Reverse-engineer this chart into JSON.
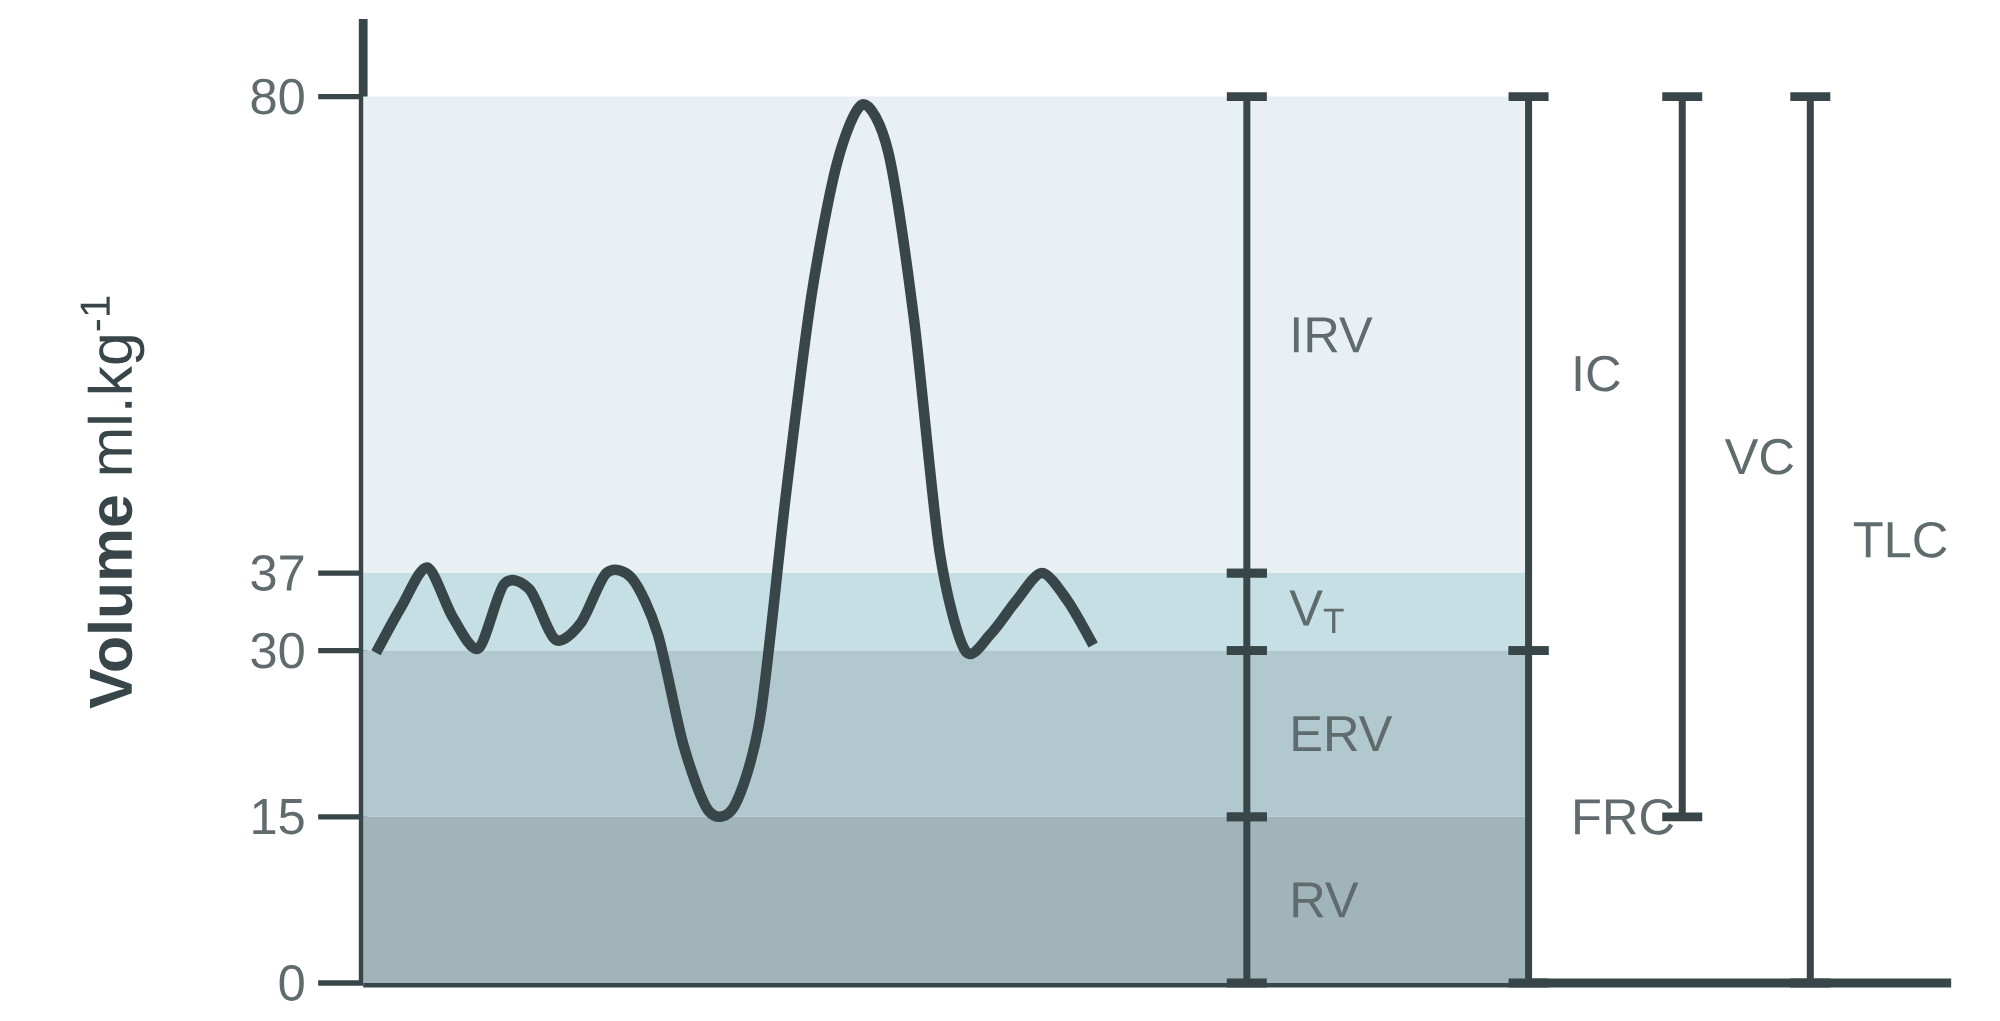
{
  "chart_data": {
    "type": "line",
    "ylabel": "**Volume** ml.kg$^{-1}$",
    "tick_labels": "y",
    "stacked": true,
    "categories": [
      null,
      null,
      null,
      null,
      null,
      null,
      null,
      null,
      null,
      null,
      null,
      null,
      null,
      null,
      null,
      null,
      null,
      null,
      null,
      null,
      null,
      null,
      null,
      null,
      null,
      null,
      null,
      null,
      null,
      null,
      null,
      null,
      null,
      null,
      null,
      null,
      null,
      null,
      null,
      null,
      null,
      null,
      null,
      null,
      null,
      null,
      null,
      null,
      null,
      null,
      null,
      null,
      null,
      null,
      null,
      null,
      null,
      null,
      null,
      null,
      null,
      null
    ],
    "series": [
      {
        "color": "#384649",
        "values": [
          29.8,
          34,
          37.5,
          33,
          30.2,
          36,
          35.5,
          31,
          32.5,
          37,
          36.5,
          31.5,
          21.5,
          15.5,
          16,
          24,
          44,
          62,
          74,
          79.3,
          75,
          60,
          39,
          30,
          31.5,
          34.5,
          37,
          34.5,
          30.5,
          null,
          null,
          null,
          null,
          null,
          null,
          null,
          null,
          null,
          null,
          null,
          null,
          null,
          null,
          null,
          null,
          null,
          null,
          null,
          null,
          null,
          null,
          null,
          null,
          null,
          null,
          null,
          null,
          null,
          null,
          null,
          null,
          null
        ]
      },
      {
        "type": "bar",
        "name": "RV",
        "color": "#384649",
        "values": [
          null,
          null,
          null,
          null,
          null,
          null,
          null,
          null,
          null,
          null,
          null,
          null,
          null,
          null,
          null,
          null,
          null,
          null,
          null,
          null,
          null,
          null,
          null,
          null,
          null,
          null,
          null,
          null,
          null,
          null,
          null,
          null,
          null,
          null,
          15,
          null,
          null,
          null,
          null,
          null,
          null,
          null,
          null,
          null,
          null,
          null,
          null,
          null,
          null,
          null,
          null,
          null,
          null,
          null,
          null,
          null,
          null,
          null,
          null,
          null,
          null,
          null
        ]
      },
      {
        "type": "bar",
        "name": "ERV",
        "color": "#384649",
        "values": [
          null,
          null,
          null,
          null,
          null,
          null,
          null,
          null,
          null,
          null,
          null,
          null,
          null,
          null,
          null,
          null,
          null,
          null,
          null,
          null,
          null,
          null,
          null,
          null,
          null,
          null,
          null,
          null,
          null,
          null,
          null,
          null,
          null,
          null,
          15,
          null,
          null,
          null,
          null,
          null,
          null,
          null,
          null,
          null,
          null,
          null,
          null,
          null,
          null,
          null,
          null,
          null,
          null,
          null,
          null,
          null,
          null,
          null,
          null,
          null,
          null,
          null
        ]
      },
      {
        "type": "bar",
        "name": "V$_{T}$",
        "color": "#384649",
        "values": [
          null,
          null,
          null,
          null,
          null,
          null,
          null,
          null,
          null,
          null,
          null,
          null,
          null,
          null,
          null,
          null,
          null,
          null,
          null,
          null,
          null,
          null,
          null,
          null,
          null,
          null,
          null,
          null,
          null,
          null,
          null,
          null,
          null,
          null,
          7,
          null,
          null,
          null,
          null,
          null,
          null,
          null,
          null,
          null,
          null,
          null,
          null,
          null,
          null,
          null,
          null,
          null,
          null,
          null,
          null,
          null,
          null,
          null,
          null,
          null,
          null,
          null
        ]
      },
      {
        "type": "bar",
        "name": "IRV",
        "color": "#384649",
        "values": [
          null,
          null,
          null,
          null,
          null,
          null,
          null,
          null,
          null,
          null,
          null,
          null,
          null,
          null,
          null,
          null,
          null,
          null,
          null,
          null,
          null,
          null,
          null,
          null,
          null,
          null,
          null,
          null,
          null,
          null,
          null,
          null,
          null,
          null,
          43,
          null,
          null,
          null,
          null,
          null,
          null,
          null,
          null,
          null,
          null,
          null,
          null,
          null,
          null,
          null,
          null,
          null,
          null,
          null,
          null,
          null,
          null,
          null,
          null,
          null,
          null,
          null
        ]
      },
      {
        "type": "bar",
        "name": "FRC",
        "color": "#384649",
        "values": [
          null,
          null,
          null,
          null,
          null,
          null,
          null,
          null,
          null,
          null,
          null,
          null,
          null,
          null,
          null,
          null,
          null,
          null,
          null,
          null,
          null,
          null,
          null,
          null,
          null,
          null,
          null,
          null,
          null,
          null,
          null,
          null,
          null,
          null,
          null,
          null,
          null,
          null,
          null,
          null,
          null,
          null,
          null,
          null,
          null,
          30,
          null,
          null,
          null,
          null,
          null,
          null,
          null,
          null,
          null,
          null,
          null,
          null,
          null,
          null,
          null,
          null
        ]
      },
      {
        "type": "bar",
        "name": "IC",
        "color": "#384649",
        "values": [
          null,
          null,
          null,
          null,
          null,
          null,
          null,
          null,
          null,
          null,
          null,
          null,
          null,
          null,
          null,
          null,
          null,
          null,
          null,
          null,
          null,
          null,
          null,
          null,
          null,
          null,
          null,
          null,
          null,
          null,
          null,
          null,
          null,
          null,
          null,
          null,
          null,
          null,
          null,
          null,
          null,
          null,
          null,
          null,
          null,
          50,
          null,
          null,
          null,
          null,
          null,
          null,
          null,
          null,
          null,
          null,
          null,
          null,
          null,
          null,
          null,
          null
        ]
      },
      {
        "type": "bar",
        "name": "VC",
        "color": "#384649",
        "values": [
          null,
          null,
          null,
          null,
          null,
          null,
          null,
          null,
          null,
          null,
          null,
          null,
          null,
          null,
          null,
          null,
          null,
          null,
          null,
          null,
          null,
          null,
          null,
          null,
          null,
          null,
          null,
          null,
          null,
          null,
          null,
          null,
          null,
          null,
          null,
          null,
          null,
          null,
          null,
          null,
          null,
          null,
          null,
          null,
          null,
          null,
          null,
          null,
          null,
          null,
          null,
          65,
          null,
          null,
          null,
          null,
          null,
          null,
          null,
          null,
          null,
          null
        ],
        "base": [
          null,
          null,
          null,
          null,
          null,
          null,
          null,
          null,
          null,
          null,
          null,
          null,
          null,
          null,
          null,
          null,
          null,
          null,
          null,
          null,
          null,
          null,
          null,
          null,
          null,
          null,
          null,
          null,
          null,
          null,
          null,
          null,
          null,
          null,
          null,
          null,
          null,
          null,
          null,
          null,
          null,
          null,
          null,
          null,
          null,
          null,
          null,
          null,
          null,
          null,
          null,
          15,
          null,
          null,
          null,
          null,
          null,
          null,
          null,
          null,
          null,
          null
        ]
      },
      {
        "type": "bar",
        "name": "TLC",
        "color": "#384649",
        "values": [
          null,
          null,
          null,
          null,
          null,
          null,
          null,
          null,
          null,
          null,
          null,
          null,
          null,
          null,
          null,
          null,
          null,
          null,
          null,
          null,
          null,
          null,
          null,
          null,
          null,
          null,
          null,
          null,
          null,
          null,
          null,
          null,
          null,
          null,
          null,
          null,
          null,
          null,
          null,
          null,
          null,
          null,
          null,
          null,
          null,
          null,
          null,
          null,
          null,
          null,
          null,
          null,
          null,
          null,
          null,
          null,
          80,
          null,
          null,
          null,
          null,
          null
        ]
      }
    ],
    "ylim": [
      0,
      87
    ],
    "yticks": [
      0,
      15,
      30,
      37,
      80
    ],
    "bands": [
      {
        "axis": "y",
        "from": 37,
        "to": 80,
        "color": "#e8f0f3"
      },
      {
        "axis": "y",
        "from": 30,
        "to": 37,
        "color": "#c6dfe4"
      },
      {
        "axis": "y",
        "from": 15,
        "to": 30,
        "color": "#b0c8ce"
      },
      {
        "axis": "y",
        "from": 0,
        "to": 15,
        "color": "#a1b4b9"
      }
    ]
  }
}
